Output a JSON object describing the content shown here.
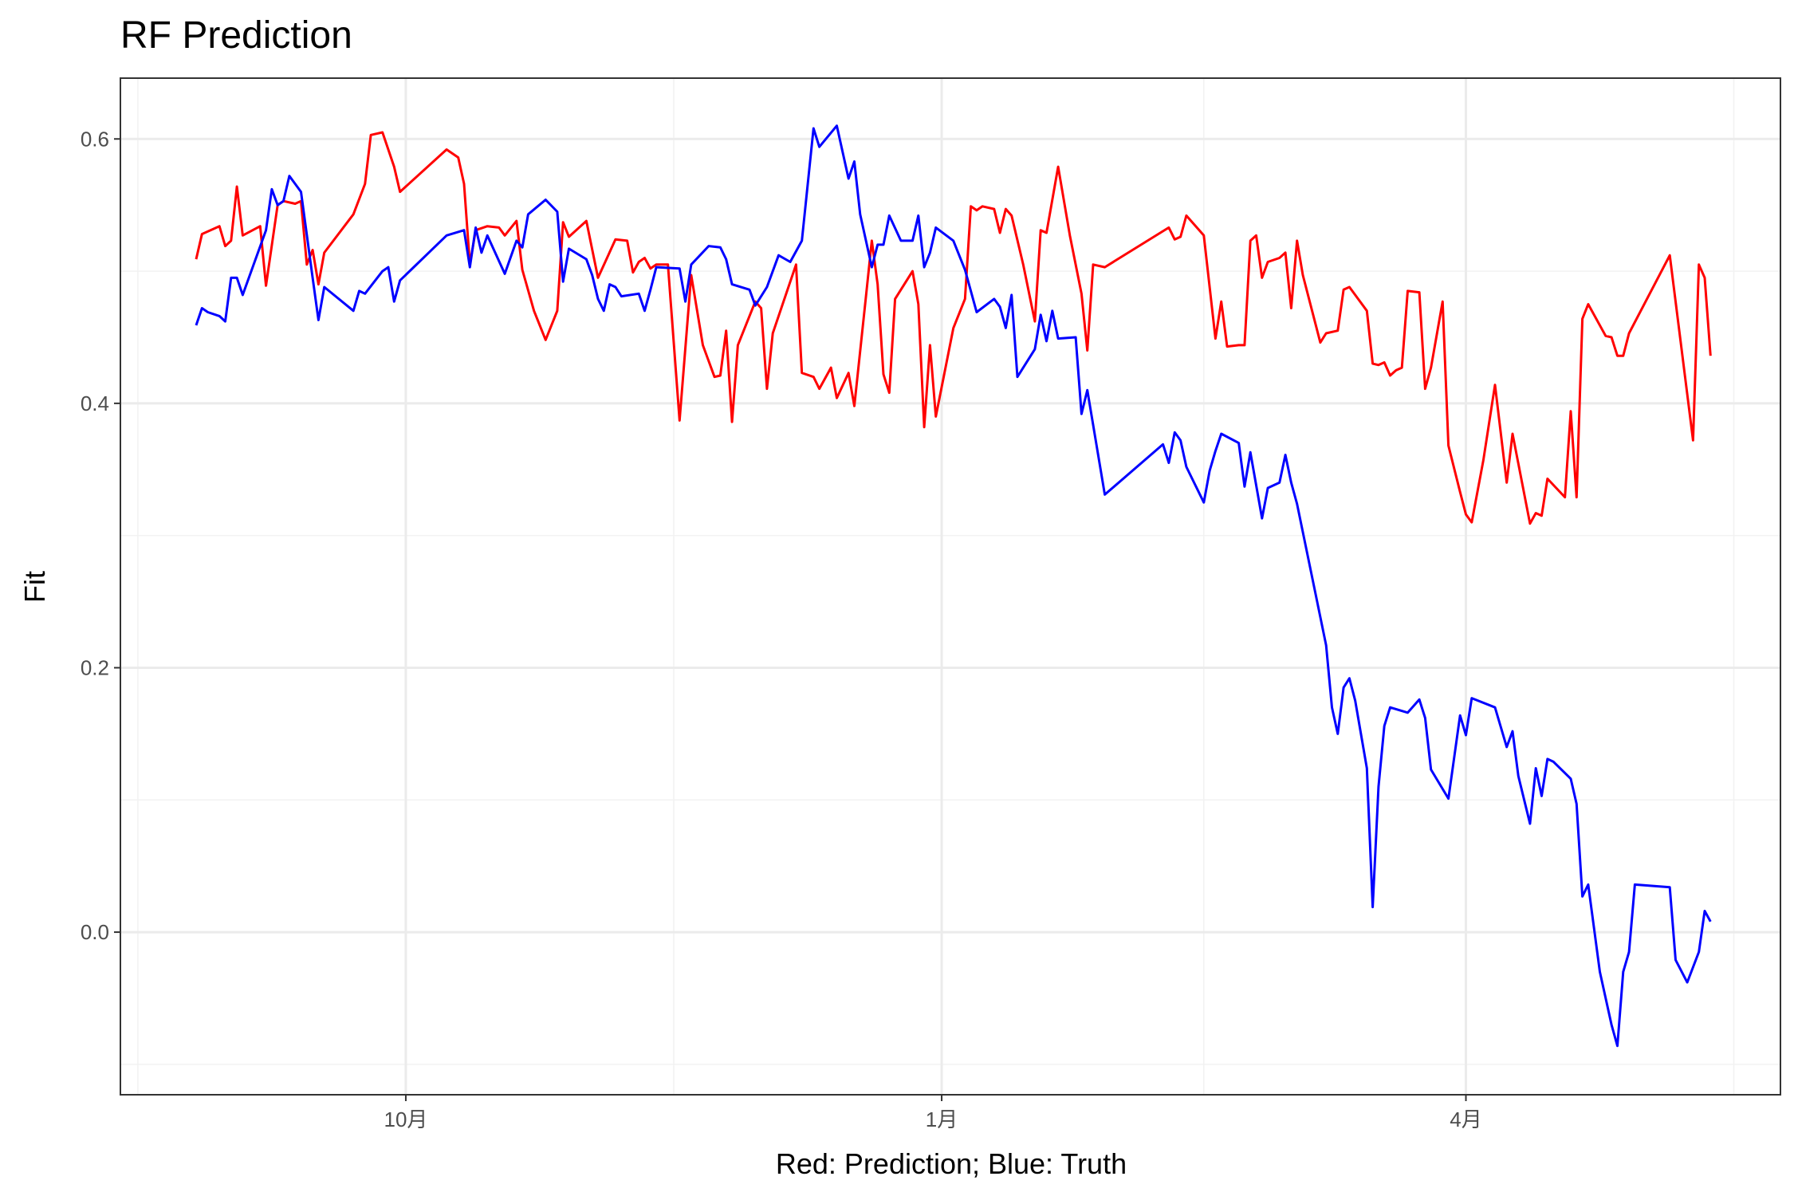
{
  "chart_data": {
    "type": "line",
    "title": "RF Prediction",
    "x_label": "Red: Prediction; Blue: Truth",
    "y_label": "Fit",
    "xlim": [
      -49,
      236
    ],
    "ylim": [
      -0.123,
      0.646
    ],
    "xticks": [
      {
        "value": 0,
        "label": "10月"
      },
      {
        "value": 92,
        "label": "1月"
      },
      {
        "value": 182,
        "label": "4月"
      }
    ],
    "xminor": [
      -46,
      46,
      137,
      228
    ],
    "yticks": [
      {
        "value": 0,
        "label": "0.0"
      },
      0.2,
      0.4,
      0.6
    ],
    "yminor": [
      -0.1,
      0.1,
      0.3,
      0.5
    ],
    "grid": true,
    "series": [
      {
        "color": "#ff0000",
        "x": [
          -36,
          -35,
          -32,
          -31,
          -30,
          -29,
          -28,
          -25,
          -24,
          -22,
          -21,
          -19,
          -18,
          -17,
          -16,
          -15,
          -14,
          -9,
          -7,
          -6,
          -4,
          -2,
          -1,
          7,
          9,
          10,
          11,
          12,
          14,
          16,
          17,
          19,
          20,
          22,
          24,
          26,
          27,
          28,
          31,
          33,
          36,
          38,
          39,
          40,
          41,
          42,
          43,
          45,
          47,
          49,
          51,
          53,
          54,
          55,
          56,
          57,
          60,
          61,
          62,
          63,
          67,
          68,
          70,
          71,
          73,
          74,
          76,
          77,
          79,
          80,
          81,
          82,
          83,
          84,
          87,
          88,
          89,
          90,
          91,
          94,
          96,
          97,
          98,
          99,
          101,
          102,
          103,
          104,
          106,
          108,
          109,
          110,
          112,
          114,
          116,
          117,
          118,
          120,
          131,
          132,
          133,
          134,
          137,
          139,
          140,
          141,
          143,
          144,
          145,
          146,
          147,
          148,
          150,
          151,
          152,
          153,
          154,
          157,
          158,
          160,
          161,
          162,
          165,
          166,
          167,
          168,
          169,
          170,
          171,
          172,
          174,
          175,
          176,
          178,
          179,
          181,
          182,
          183,
          185,
          187,
          189,
          190,
          193,
          194,
          195,
          196,
          199,
          200,
          201,
          202,
          203,
          206,
          207,
          208,
          209,
          210,
          217,
          221,
          222,
          223,
          224
        ],
        "values": [
          0.509,
          0.528,
          0.534,
          0.519,
          0.523,
          0.564,
          0.527,
          0.534,
          0.489,
          0.55,
          0.553,
          0.551,
          0.553,
          0.505,
          0.516,
          0.49,
          0.514,
          0.543,
          0.566,
          0.603,
          0.605,
          0.579,
          0.56,
          0.592,
          0.586,
          0.566,
          0.505,
          0.531,
          0.534,
          0.533,
          0.527,
          0.538,
          0.501,
          0.47,
          0.448,
          0.47,
          0.537,
          0.526,
          0.538,
          0.495,
          0.524,
          0.523,
          0.499,
          0.507,
          0.51,
          0.502,
          0.505,
          0.505,
          0.387,
          0.497,
          0.444,
          0.42,
          0.421,
          0.455,
          0.386,
          0.444,
          0.477,
          0.472,
          0.411,
          0.453,
          0.505,
          0.423,
          0.42,
          0.411,
          0.427,
          0.404,
          0.423,
          0.398,
          0.481,
          0.523,
          0.49,
          0.422,
          0.408,
          0.479,
          0.5,
          0.475,
          0.382,
          0.444,
          0.39,
          0.457,
          0.479,
          0.549,
          0.546,
          0.549,
          0.547,
          0.529,
          0.547,
          0.542,
          0.505,
          0.462,
          0.531,
          0.529,
          0.579,
          0.527,
          0.483,
          0.44,
          0.505,
          0.503,
          0.533,
          0.524,
          0.526,
          0.542,
          0.527,
          0.449,
          0.477,
          0.443,
          0.444,
          0.444,
          0.523,
          0.527,
          0.495,
          0.507,
          0.51,
          0.514,
          0.472,
          0.523,
          0.497,
          0.446,
          0.453,
          0.455,
          0.486,
          0.488,
          0.47,
          0.43,
          0.429,
          0.431,
          0.421,
          0.425,
          0.427,
          0.485,
          0.484,
          0.411,
          0.427,
          0.477,
          0.368,
          0.333,
          0.316,
          0.31,
          0.357,
          0.414,
          0.34,
          0.377,
          0.309,
          0.317,
          0.315,
          0.343,
          0.329,
          0.394,
          0.329,
          0.464,
          0.475,
          0.451,
          0.45,
          0.436,
          0.436,
          0.453,
          0.512,
          0.372,
          0.505,
          0.495,
          0.436
        ]
      },
      {
        "color": "#0000ff",
        "x": [
          -36,
          -35,
          -34,
          -32,
          -31,
          -30,
          -29,
          -28,
          -24,
          -23,
          -22,
          -21,
          -20,
          -19,
          -18,
          -16,
          -15,
          -14,
          -9,
          -8,
          -7,
          -4,
          -3,
          -2,
          -1,
          7,
          10,
          11,
          12,
          13,
          14,
          17,
          19,
          20,
          21,
          24,
          26,
          27,
          28,
          31,
          32,
          33,
          34,
          35,
          36,
          37,
          40,
          41,
          42,
          43,
          47,
          48,
          49,
          52,
          54,
          55,
          56,
          59,
          60,
          62,
          64,
          66,
          68,
          70,
          71,
          74,
          76,
          77,
          78,
          80,
          81,
          82,
          83,
          85,
          87,
          88,
          89,
          90,
          91,
          94,
          96,
          98,
          101,
          102,
          103,
          104,
          105,
          108,
          109,
          110,
          111,
          112,
          115,
          116,
          117,
          120,
          130,
          131,
          132,
          133,
          134,
          137,
          138,
          139,
          140,
          143,
          144,
          145,
          147,
          148,
          150,
          151,
          152,
          153,
          158,
          159,
          160,
          161,
          162,
          163,
          165,
          166,
          167,
          168,
          169,
          172,
          174,
          175,
          176,
          179,
          181,
          182,
          183,
          187,
          189,
          190,
          191,
          193,
          194,
          195,
          196,
          197,
          200,
          201,
          202,
          203,
          205,
          207,
          208,
          209,
          210,
          211,
          217,
          218,
          220,
          222,
          223,
          224
        ],
        "values": [
          0.459,
          0.472,
          0.469,
          0.466,
          0.462,
          0.495,
          0.495,
          0.482,
          0.531,
          0.562,
          0.55,
          0.553,
          0.572,
          0.566,
          0.56,
          0.495,
          0.463,
          0.488,
          0.47,
          0.485,
          0.483,
          0.5,
          0.503,
          0.477,
          0.493,
          0.527,
          0.531,
          0.503,
          0.533,
          0.514,
          0.527,
          0.498,
          0.523,
          0.518,
          0.543,
          0.554,
          0.545,
          0.492,
          0.517,
          0.509,
          0.497,
          0.479,
          0.47,
          0.49,
          0.488,
          0.481,
          0.483,
          0.47,
          0.486,
          0.503,
          0.502,
          0.477,
          0.505,
          0.519,
          0.518,
          0.509,
          0.49,
          0.486,
          0.474,
          0.488,
          0.512,
          0.507,
          0.523,
          0.608,
          0.594,
          0.61,
          0.57,
          0.583,
          0.543,
          0.503,
          0.52,
          0.52,
          0.542,
          0.523,
          0.523,
          0.542,
          0.503,
          0.514,
          0.533,
          0.523,
          0.501,
          0.469,
          0.479,
          0.473,
          0.457,
          0.482,
          0.42,
          0.441,
          0.467,
          0.447,
          0.47,
          0.449,
          0.45,
          0.392,
          0.41,
          0.331,
          0.369,
          0.355,
          0.378,
          0.372,
          0.352,
          0.325,
          0.349,
          0.364,
          0.377,
          0.37,
          0.337,
          0.363,
          0.313,
          0.336,
          0.34,
          0.361,
          0.34,
          0.324,
          0.217,
          0.17,
          0.15,
          0.185,
          0.192,
          0.175,
          0.124,
          0.019,
          0.11,
          0.156,
          0.17,
          0.166,
          0.176,
          0.162,
          0.123,
          0.101,
          0.164,
          0.149,
          0.177,
          0.17,
          0.14,
          0.152,
          0.118,
          0.082,
          0.124,
          0.103,
          0.131,
          0.129,
          0.116,
          0.097,
          0.027,
          0.036,
          -0.03,
          -0.07,
          -0.086,
          -0.03,
          -0.015,
          0.036,
          0.034,
          -0.021,
          -0.038,
          -0.015,
          0.016,
          0.008
        ]
      }
    ]
  }
}
